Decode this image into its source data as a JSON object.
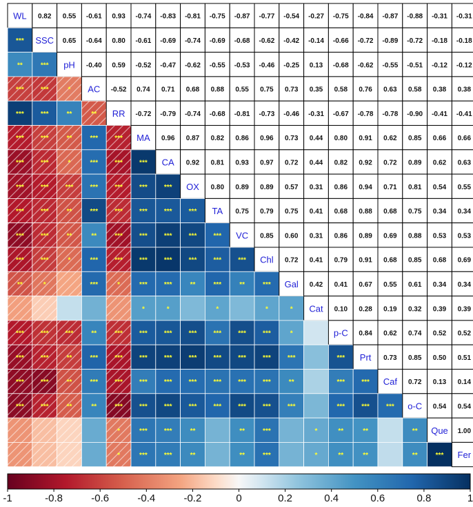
{
  "chart_data": {
    "type": "heatmap",
    "title": "",
    "variables": [
      "WL",
      "SSC",
      "pH",
      "AC",
      "RR",
      "MA",
      "CA",
      "OX",
      "TA",
      "VC",
      "Chl",
      "Gal",
      "Cat",
      "p-C",
      "Prt",
      "Caf",
      "o-C",
      "Que",
      "Fer"
    ],
    "upper_values": [
      [
        "",
        "0.82",
        "0.55",
        "-0.61",
        "0.93",
        "-0.74",
        "-0.83",
        "-0.81",
        "-0.75",
        "-0.87",
        "-0.77",
        "-0.54",
        "-0.27",
        "-0.75",
        "-0.84",
        "-0.87",
        "-0.88",
        "-0.31",
        "-0.31"
      ],
      [
        "",
        "",
        "0.65",
        "-0.64",
        "0.80",
        "-0.61",
        "-0.69",
        "-0.74",
        "-0.69",
        "-0.68",
        "-0.62",
        "-0.42",
        "-0.14",
        "-0.66",
        "-0.72",
        "-0.89",
        "-0.72",
        "-0.18",
        "-0.18"
      ],
      [
        "",
        "",
        "",
        "-0.40",
        "0.59",
        "-0.52",
        "-0.47",
        "-0.62",
        "-0.55",
        "-0.53",
        "-0.46",
        "-0.25",
        "0.13",
        "-0.68",
        "-0.62",
        "-0.55",
        "-0.51",
        "-0.12",
        "-0.12"
      ],
      [
        "",
        "",
        "",
        "",
        "-0.52",
        "0.74",
        "0.71",
        "0.68",
        "0.88",
        "0.55",
        "0.75",
        "0.73",
        "0.35",
        "0.58",
        "0.76",
        "0.63",
        "0.58",
        "0.38",
        "0.38"
      ],
      [
        "",
        "",
        "",
        "",
        "",
        "-0.72",
        "-0.79",
        "-0.74",
        "-0.68",
        "-0.81",
        "-0.73",
        "-0.46",
        "-0.31",
        "-0.67",
        "-0.78",
        "-0.78",
        "-0.90",
        "-0.41",
        "-0.41"
      ],
      [
        "",
        "",
        "",
        "",
        "",
        "",
        "0.96",
        "0.87",
        "0.82",
        "0.86",
        "0.96",
        "0.73",
        "0.44",
        "0.80",
        "0.91",
        "0.62",
        "0.85",
        "0.66",
        "0.66"
      ],
      [
        "",
        "",
        "",
        "",
        "",
        "",
        "",
        "0.92",
        "0.81",
        "0.93",
        "0.97",
        "0.72",
        "0.44",
        "0.82",
        "0.92",
        "0.72",
        "0.89",
        "0.62",
        "0.63"
      ],
      [
        "",
        "",
        "",
        "",
        "",
        "",
        "",
        "",
        "0.80",
        "0.89",
        "0.89",
        "0.57",
        "0.31",
        "0.86",
        "0.94",
        "0.71",
        "0.81",
        "0.54",
        "0.55"
      ],
      [
        "",
        "",
        "",
        "",
        "",
        "",
        "",
        "",
        "",
        "0.75",
        "0.79",
        "0.75",
        "0.41",
        "0.68",
        "0.88",
        "0.68",
        "0.75",
        "0.34",
        "0.34"
      ],
      [
        "",
        "",
        "",
        "",
        "",
        "",
        "",
        "",
        "",
        "",
        "0.85",
        "0.60",
        "0.31",
        "0.86",
        "0.89",
        "0.69",
        "0.88",
        "0.53",
        "0.53"
      ],
      [
        "",
        "",
        "",
        "",
        "",
        "",
        "",
        "",
        "",
        "",
        "",
        "0.72",
        "0.41",
        "0.79",
        "0.91",
        "0.68",
        "0.85",
        "0.68",
        "0.69"
      ],
      [
        "",
        "",
        "",
        "",
        "",
        "",
        "",
        "",
        "",
        "",
        "",
        "",
        "0.42",
        "0.41",
        "0.67",
        "0.55",
        "0.61",
        "0.34",
        "0.34"
      ],
      [
        "",
        "",
        "",
        "",
        "",
        "",
        "",
        "",
        "",
        "",
        "",
        "",
        "",
        "0.10",
        "0.28",
        "0.19",
        "0.32",
        "0.39",
        "0.39"
      ],
      [
        "",
        "",
        "",
        "",
        "",
        "",
        "",
        "",
        "",
        "",
        "",
        "",
        "",
        "",
        "0.84",
        "0.62",
        "0.74",
        "0.52",
        "0.52"
      ],
      [
        "",
        "",
        "",
        "",
        "",
        "",
        "",
        "",
        "",
        "",
        "",
        "",
        "",
        "",
        "",
        "0.73",
        "0.85",
        "0.50",
        "0.51"
      ],
      [
        "",
        "",
        "",
        "",
        "",
        "",
        "",
        "",
        "",
        "",
        "",
        "",
        "",
        "",
        "",
        "",
        "0.72",
        "0.13",
        "0.14"
      ],
      [
        "",
        "",
        "",
        "",
        "",
        "",
        "",
        "",
        "",
        "",
        "",
        "",
        "",
        "",
        "",
        "",
        "",
        "0.54",
        "0.54"
      ],
      [
        "",
        "",
        "",
        "",
        "",
        "",
        "",
        "",
        "",
        "",
        "",
        "",
        "",
        "",
        "",
        "",
        "",
        "",
        "1.00"
      ],
      [
        "",
        "",
        "",
        "",
        "",
        "",
        "",
        "",
        "",
        "",
        "",
        "",
        "",
        "",
        "",
        "",
        "",
        "",
        ""
      ]
    ],
    "significance_lower": [
      [],
      [
        "***"
      ],
      [
        "**",
        "***"
      ],
      [
        "***",
        "***",
        "*"
      ],
      [
        "***",
        "***",
        "**",
        "**"
      ],
      [
        "***",
        "***",
        "**",
        "***",
        "***"
      ],
      [
        "***",
        "***",
        "*",
        "***",
        "***",
        "***"
      ],
      [
        "***",
        "***",
        "***",
        "***",
        "***",
        "***",
        "***"
      ],
      [
        "***",
        "***",
        "**",
        "***",
        "***",
        "***",
        "***",
        "***"
      ],
      [
        "***",
        "***",
        "**",
        "**",
        "***",
        "***",
        "***",
        "***",
        "***"
      ],
      [
        "***",
        "***",
        "*",
        "***",
        "***",
        "***",
        "***",
        "***",
        "***",
        "***"
      ],
      [
        "**",
        "*",
        "",
        "***",
        "*",
        "***",
        "***",
        "**",
        "***",
        "**",
        "***"
      ],
      [
        "",
        "",
        "",
        "",
        "",
        "*",
        "*",
        "",
        "*",
        "",
        "*",
        "*"
      ],
      [
        "***",
        "***",
        "***",
        "**",
        "***",
        "***",
        "***",
        "***",
        "***",
        "***",
        "***",
        "*",
        ""
      ],
      [
        "***",
        "***",
        "**",
        "***",
        "***",
        "***",
        "***",
        "***",
        "***",
        "***",
        "***",
        "***",
        "",
        "***"
      ],
      [
        "***",
        "***",
        "**",
        "***",
        "***",
        "***",
        "***",
        "***",
        "***",
        "***",
        "***",
        "**",
        "",
        "***",
        "***"
      ],
      [
        "***",
        "***",
        "**",
        "**",
        "***",
        "***",
        "***",
        "***",
        "***",
        "***",
        "***",
        "***",
        "",
        "***",
        "***",
        "***"
      ],
      [
        "",
        "",
        "",
        "",
        "*",
        "***",
        "***",
        "**",
        "",
        "**",
        "***",
        "",
        "*",
        "**",
        "**",
        "",
        "**"
      ],
      [
        "",
        "",
        "",
        "",
        "*",
        "***",
        "***",
        "**",
        "",
        "**",
        "***",
        "",
        "*",
        "**",
        "**",
        "",
        "**",
        "***"
      ]
    ],
    "color_scale": {
      "min": -1,
      "max": 1,
      "ticks": [
        "-1",
        "-0.8",
        "-0.6",
        "-0.4",
        "-0.2",
        "0",
        "0.2",
        "0.4",
        "0.6",
        "0.8",
        "1"
      ],
      "negative_color": "#67001f",
      "neutral_color": "#f7f7f7",
      "positive_color": "#053061"
    },
    "colors": {
      "variable_label": "#1f1fd6",
      "significance": "#ffff33",
      "value_text": "#111111"
    }
  }
}
